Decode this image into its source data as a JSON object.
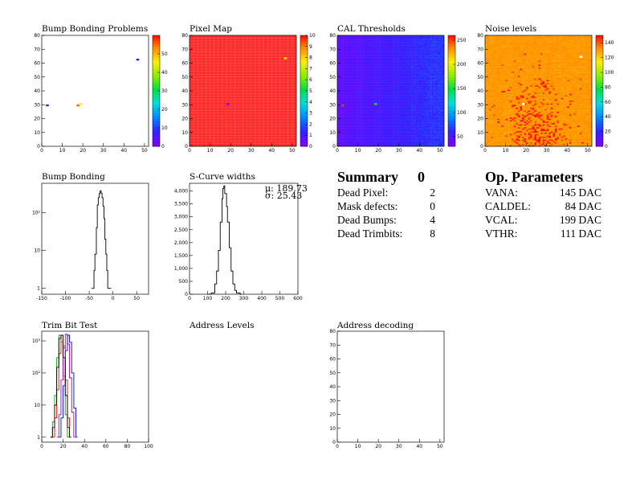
{
  "panels": {
    "bump_problems": {
      "title": "Bump Bonding Problems"
    },
    "pixel_map": {
      "title": "Pixel Map"
    },
    "cal_thresholds": {
      "title": "CAL Thresholds"
    },
    "noise_levels": {
      "title": "Noise levels"
    },
    "bump_bonding": {
      "title": "Bump Bonding"
    },
    "scurve": {
      "title": "S-Curve widths",
      "stats": {
        "mu": "μ: 189.73",
        "sigma": "σ: 25.43"
      }
    },
    "trim_bit": {
      "title": "Trim Bit Test"
    },
    "address_levels": {
      "title": "Address Levels"
    },
    "address_decoding": {
      "title": "Address decoding"
    }
  },
  "summary": {
    "title": "Summary",
    "count": "0",
    "rows": [
      {
        "label": "Dead Pixel:",
        "value": "2"
      },
      {
        "label": "Mask defects:",
        "value": "0"
      },
      {
        "label": "Dead Bumps:",
        "value": "4"
      },
      {
        "label": "Dead Trimbits:",
        "value": "8"
      }
    ]
  },
  "op_params": {
    "title": "Op. Parameters",
    "rows": [
      {
        "label": "VANA:",
        "value": "145 DAC"
      },
      {
        "label": "CALDEL:",
        "value": "84 DAC"
      },
      {
        "label": "VCAL:",
        "value": "199 DAC"
      },
      {
        "label": "VTHR:",
        "value": "111 DAC"
      }
    ]
  },
  "chart_data": [
    {
      "id": "bump_problems",
      "type": "heatmap",
      "xlim": [
        0,
        52
      ],
      "ylim": [
        0,
        80
      ],
      "xticks": [
        0,
        10,
        20,
        30,
        40,
        50
      ],
      "yticks": [
        0,
        10,
        20,
        30,
        40,
        50,
        60,
        70,
        80
      ],
      "zticks": [
        0,
        10,
        20,
        30,
        40,
        50
      ],
      "zlim": [
        0,
        60
      ],
      "points": [
        {
          "x": 2,
          "y": 29,
          "z": 5
        },
        {
          "x": 17,
          "y": 29,
          "z": 55
        },
        {
          "x": 18,
          "y": 30,
          "z": 45
        },
        {
          "x": 46,
          "y": 62,
          "z": 5
        }
      ]
    },
    {
      "id": "pixel_map",
      "type": "heatmap",
      "xlim": [
        0,
        52
      ],
      "ylim": [
        0,
        80
      ],
      "xticks": [
        0,
        10,
        20,
        30,
        40,
        50
      ],
      "yticks": [
        0,
        10,
        20,
        30,
        40,
        50,
        60,
        70,
        80
      ],
      "zticks": [
        0,
        1,
        2,
        3,
        4,
        5,
        6,
        7,
        8,
        9,
        10
      ],
      "zlim": [
        0,
        10
      ],
      "fill": "#ff2a2a",
      "points": [
        {
          "x": 18,
          "y": 30,
          "z": 0
        },
        {
          "x": 46,
          "y": 63,
          "z": 7
        }
      ]
    },
    {
      "id": "cal_thresholds",
      "type": "heatmap",
      "xlim": [
        0,
        52
      ],
      "ylim": [
        0,
        80
      ],
      "xticks": [
        0,
        10,
        20,
        30,
        40,
        50
      ],
      "yticks": [
        0,
        10,
        20,
        30,
        40,
        50,
        60,
        70,
        80
      ],
      "zticks": [
        50,
        100,
        150,
        200,
        250
      ],
      "zlim": [
        30,
        260
      ],
      "points": [
        {
          "x": 2,
          "y": 29,
          "z": 250
        },
        {
          "x": 18,
          "y": 30,
          "z": 150
        }
      ]
    },
    {
      "id": "noise_levels",
      "type": "heatmap",
      "xlim": [
        0,
        52
      ],
      "ylim": [
        0,
        80
      ],
      "xticks": [
        0,
        10,
        20,
        30,
        40,
        50
      ],
      "yticks": [
        0,
        10,
        20,
        30,
        40,
        50,
        60,
        70,
        80
      ],
      "zticks": [
        0,
        20,
        40,
        60,
        80,
        100,
        120,
        140
      ],
      "zlim": [
        0,
        150
      ],
      "points": [
        {
          "x": 46,
          "y": 64,
          "z": 140
        },
        {
          "x": 18,
          "y": 30,
          "z": 140
        }
      ]
    },
    {
      "id": "bump_bonding",
      "type": "line",
      "logy": true,
      "xlim": [
        -150,
        75
      ],
      "ylim": [
        0.7,
        600
      ],
      "xticks": [
        -150,
        -100,
        -50,
        0,
        50
      ],
      "ytick_labels": [
        "1",
        "10",
        "10²"
      ],
      "x": [
        -45,
        -40,
        -38,
        -35,
        -33,
        -31,
        -29,
        -27,
        -25,
        -23,
        -21,
        -19,
        -17,
        -15,
        -13,
        -11,
        -9,
        -7
      ],
      "values": [
        1,
        3,
        8,
        40,
        160,
        250,
        320,
        380,
        330,
        250,
        150,
        70,
        20,
        8,
        3,
        1,
        1,
        1
      ]
    },
    {
      "id": "scurve",
      "type": "line",
      "xlim": [
        0,
        600
      ],
      "ylim": [
        0,
        4300
      ],
      "xticks": [
        0,
        100,
        200,
        300,
        400,
        500,
        600
      ],
      "yticks": [
        0,
        500,
        1000,
        1500,
        2000,
        2500,
        3000,
        3500,
        4000
      ],
      "ytick_labels": [
        "0",
        "500",
        "1,000",
        "1,500",
        "2,000",
        "2,500",
        "3,000",
        "3,500",
        "4,000"
      ],
      "x": [
        100,
        120,
        140,
        150,
        160,
        170,
        180,
        185,
        190,
        195,
        200,
        205,
        210,
        220,
        230,
        240,
        250,
        260,
        280
      ],
      "values": [
        0,
        50,
        400,
        900,
        1700,
        2800,
        3700,
        4100,
        4200,
        3900,
        3900,
        3400,
        2800,
        1800,
        900,
        400,
        150,
        50,
        0
      ]
    },
    {
      "id": "trim_bit",
      "type": "line",
      "logy": true,
      "xlim": [
        0,
        100
      ],
      "ylim": [
        0.7,
        2000
      ],
      "xticks": [
        0,
        20,
        40,
        60,
        80,
        100
      ],
      "ytick_labels": [
        "1",
        "10",
        "10²",
        "10³"
      ],
      "series": [
        {
          "color": "#00aa00",
          "x": [
            8,
            10,
            12,
            14,
            16,
            18,
            20,
            22,
            24
          ],
          "values": [
            1,
            3,
            20,
            300,
            1500,
            900,
            80,
            5,
            1
          ]
        },
        {
          "color": "#ff0000",
          "x": [
            10,
            12,
            14,
            16,
            18,
            20,
            22,
            24,
            26
          ],
          "values": [
            1,
            4,
            30,
            400,
            1500,
            700,
            60,
            4,
            1
          ]
        },
        {
          "color": "#aa00aa",
          "x": [
            14,
            16,
            18,
            20,
            22,
            24,
            26,
            28,
            30
          ],
          "values": [
            1,
            5,
            60,
            600,
            1600,
            800,
            70,
            6,
            1
          ]
        },
        {
          "color": "#0000ff",
          "x": [
            16,
            18,
            20,
            22,
            24,
            26,
            28,
            30,
            32
          ],
          "values": [
            1,
            4,
            40,
            500,
            1500,
            900,
            100,
            8,
            1
          ]
        },
        {
          "color": "#000000",
          "x": [
            8,
            10,
            12,
            14,
            16,
            18,
            20,
            22,
            24,
            26
          ],
          "values": [
            1,
            2,
            10,
            150,
            1200,
            1500,
            300,
            20,
            2,
            1
          ]
        }
      ]
    },
    {
      "id": "address_decoding",
      "type": "heatmap",
      "xlim": [
        0,
        52
      ],
      "ylim": [
        0,
        80
      ],
      "xticks": [
        0,
        10,
        20,
        30,
        40,
        50
      ],
      "yticks": [
        0,
        10,
        20,
        30,
        40,
        50,
        60,
        70,
        80
      ],
      "points": []
    }
  ]
}
